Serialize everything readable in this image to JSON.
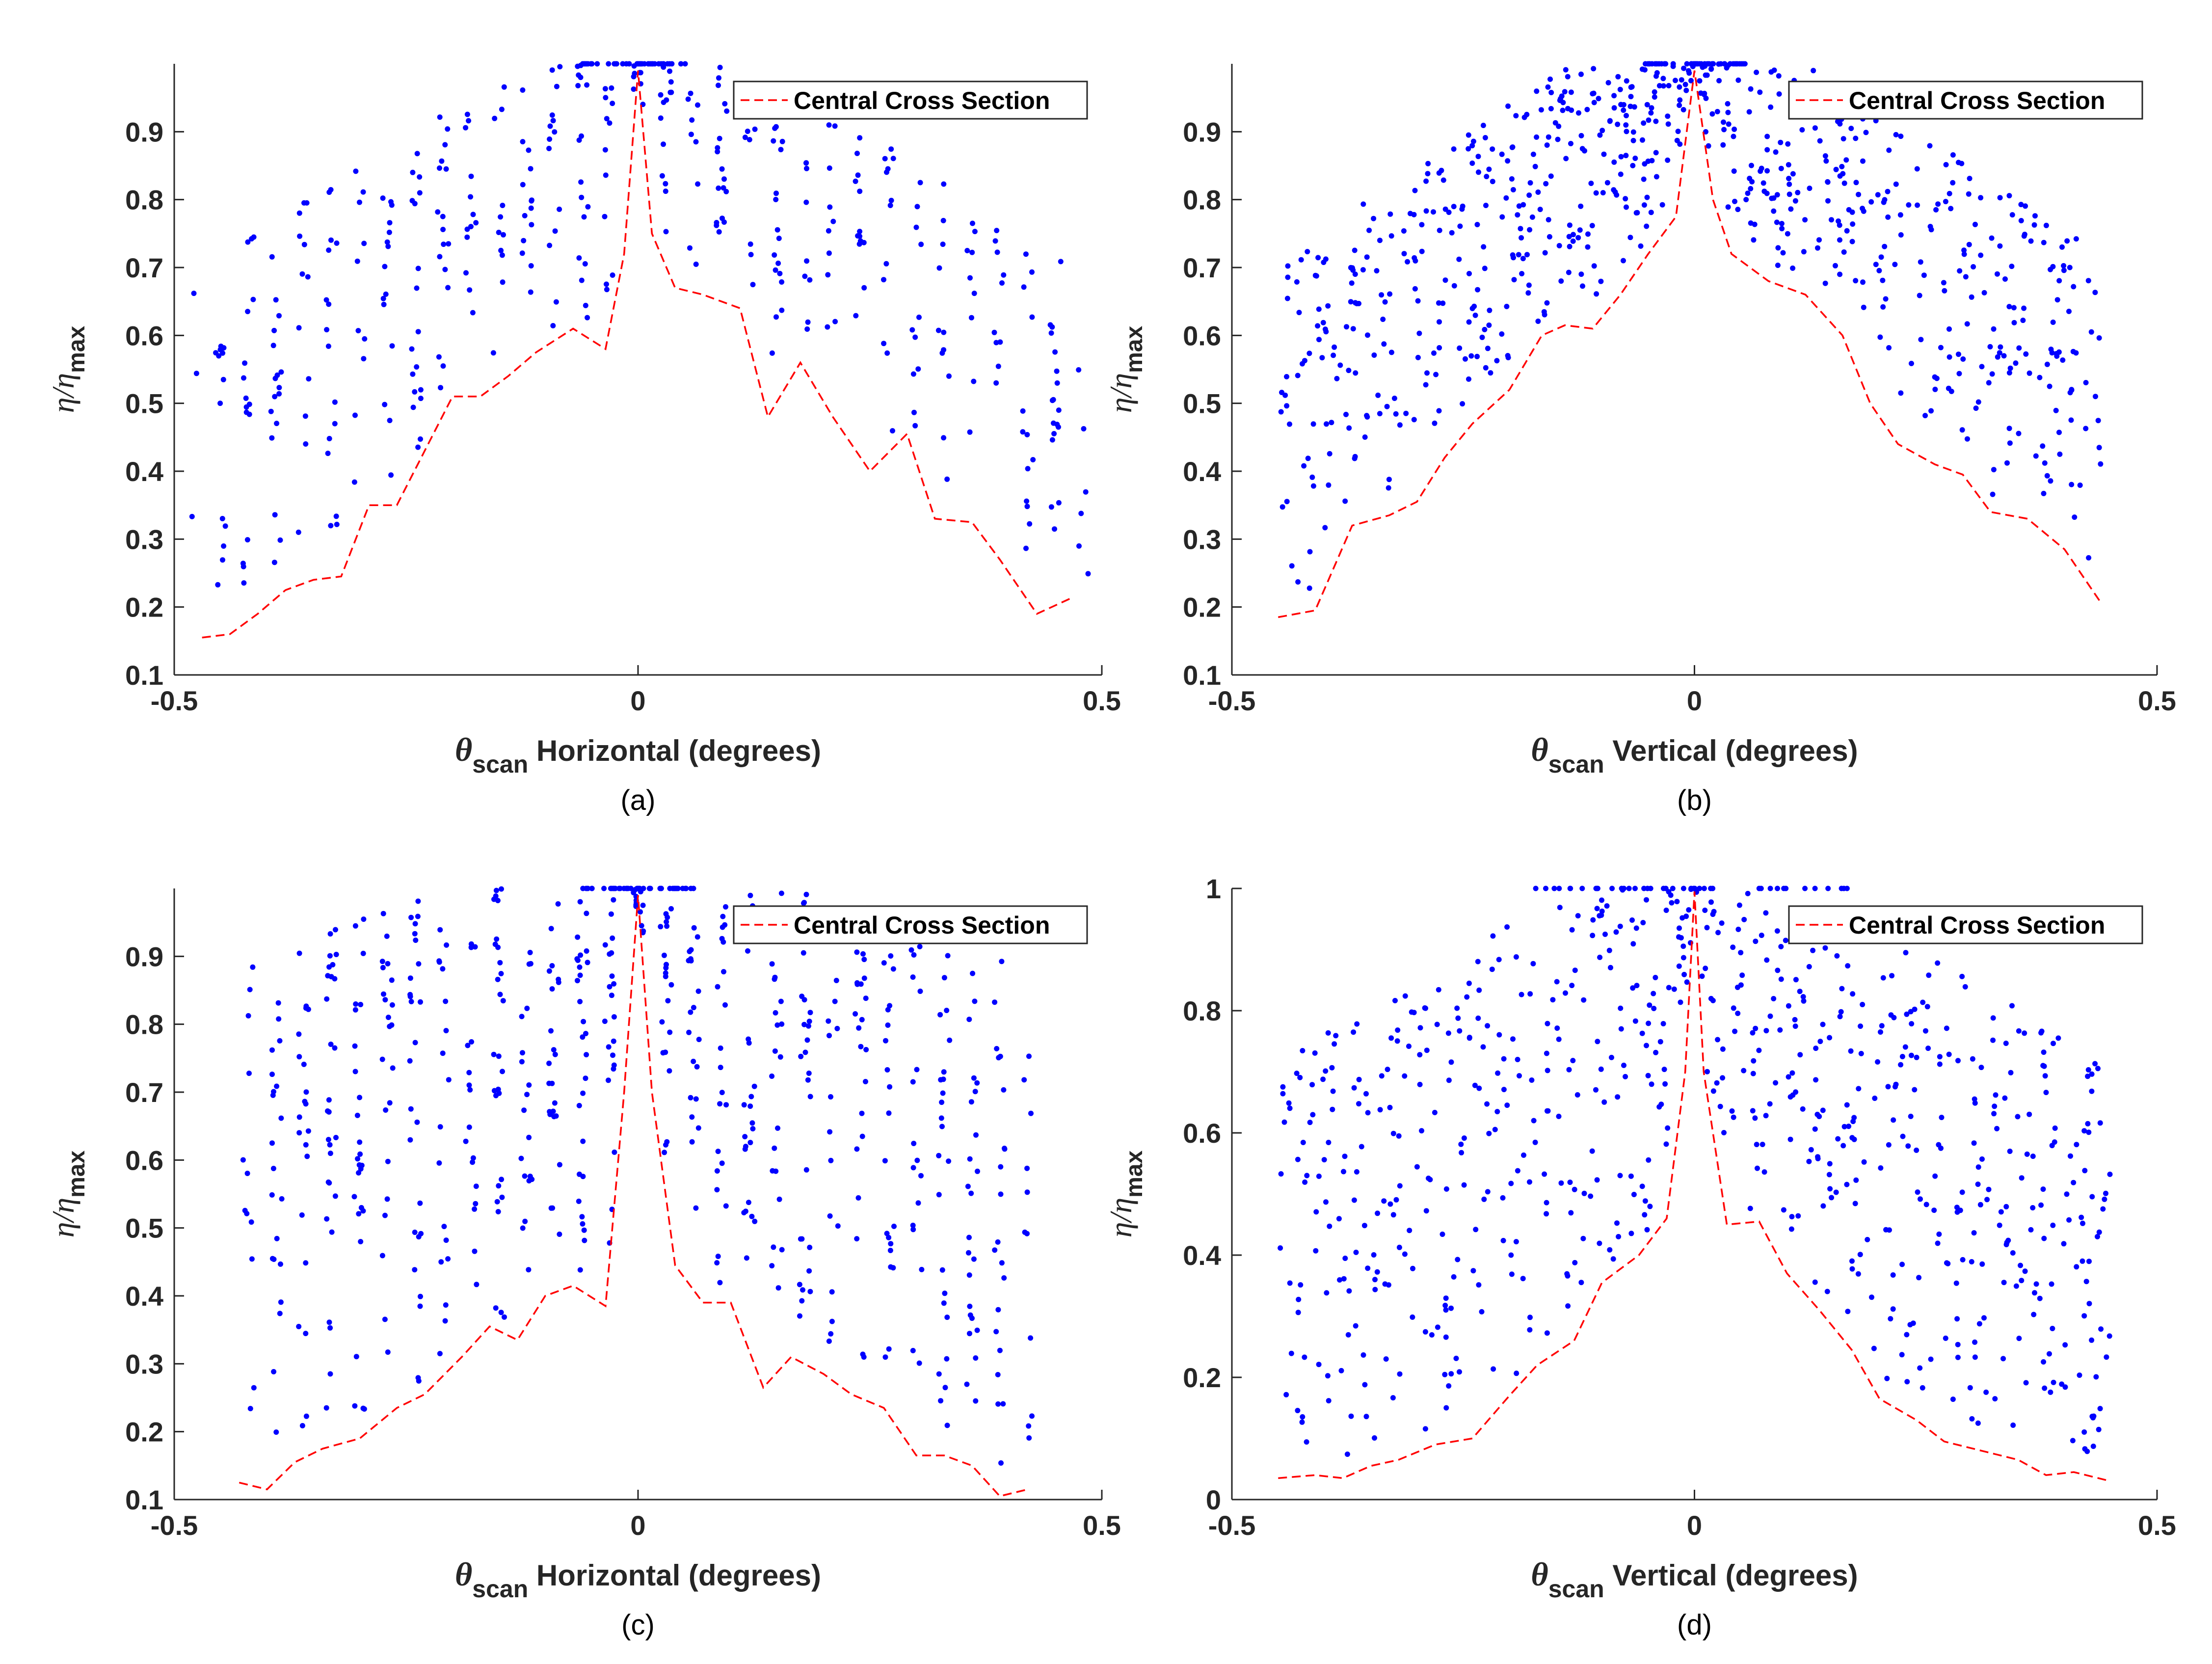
{
  "figure": {
    "legend_label": "Central Cross Section",
    "colors": {
      "points": "#0000ff",
      "line": "#ff0000",
      "axis": "#262626",
      "legend_border": "#262626"
    }
  },
  "chart_data": [
    {
      "id": "a",
      "type": "scatter",
      "caption": "(a)",
      "xlabel": {
        "symbol": "θ",
        "sub": "scan",
        "text": " Horizontal (degrees)"
      },
      "ylabel": {
        "symbol": "η/η",
        "sub": "max"
      },
      "xlim": [
        -0.5,
        0.5
      ],
      "ylim": [
        0.1,
        1.0
      ],
      "xticks": [
        -0.5,
        0,
        0.5
      ],
      "xtick_labels": [
        "-0.5",
        "0",
        "0.5"
      ],
      "yticks": [
        0.1,
        0.2,
        0.3,
        0.4,
        0.5,
        0.6,
        0.7,
        0.8,
        0.9
      ],
      "ytick_labels": [
        "0.1",
        "0.2",
        "0.3",
        "0.4",
        "0.5",
        "0.6",
        "0.7",
        "0.8",
        "0.9"
      ],
      "legend": {
        "label": "Central Cross Section",
        "position": "top-right"
      },
      "series": [
        {
          "name": "Central Cross Section",
          "style": "dashed-line",
          "x": [
            -0.47,
            -0.44,
            -0.41,
            -0.38,
            -0.35,
            -0.32,
            -0.29,
            -0.26,
            -0.23,
            -0.2,
            -0.17,
            -0.14,
            -0.11,
            -0.07,
            -0.035,
            -0.015,
            0,
            0.015,
            0.04,
            0.07,
            0.11,
            0.14,
            0.175,
            0.21,
            0.25,
            0.29,
            0.32,
            0.36,
            0.39,
            0.43,
            0.47
          ],
          "y": [
            0.155,
            0.16,
            0.19,
            0.225,
            0.24,
            0.245,
            0.35,
            0.35,
            0.43,
            0.51,
            0.51,
            0.54,
            0.575,
            0.61,
            0.58,
            0.72,
            0.99,
            0.75,
            0.67,
            0.66,
            0.64,
            0.48,
            0.56,
            0.48,
            0.4,
            0.455,
            0.33,
            0.325,
            0.27,
            0.19,
            0.215
          ]
        }
      ],
      "scatter_profile": {
        "n": 420,
        "envelope_peak_x": 0.0,
        "lower_bound": "dashed line",
        "upper_bound": 1.0,
        "clusters": "vertical columns every ~0.03 deg"
      }
    },
    {
      "id": "b",
      "type": "scatter",
      "caption": "(b)",
      "xlabel": {
        "symbol": "θ",
        "sub": "scan",
        "text": " Vertical (degrees)"
      },
      "ylabel": {
        "symbol": "η/η",
        "sub": "max"
      },
      "xlim": [
        -0.5,
        0.5
      ],
      "ylim": [
        0.1,
        1.0
      ],
      "xticks": [
        -0.5,
        0,
        0.5
      ],
      "xtick_labels": [
        "-0.5",
        "0",
        "0.5"
      ],
      "yticks": [
        0.1,
        0.2,
        0.3,
        0.4,
        0.5,
        0.6,
        0.7,
        0.8,
        0.9
      ],
      "ytick_labels": [
        "0.1",
        "0.2",
        "0.3",
        "0.4",
        "0.5",
        "0.6",
        "0.7",
        "0.8",
        "0.9"
      ],
      "legend": {
        "label": "Central Cross Section",
        "position": "top-right"
      },
      "series": [
        {
          "name": "Central Cross Section",
          "style": "dashed-line",
          "x": [
            -0.45,
            -0.41,
            -0.37,
            -0.33,
            -0.3,
            -0.27,
            -0.24,
            -0.2,
            -0.165,
            -0.14,
            -0.11,
            -0.08,
            -0.05,
            -0.02,
            0,
            0.02,
            0.04,
            0.08,
            0.12,
            0.16,
            0.19,
            0.22,
            0.26,
            0.29,
            0.32,
            0.36,
            0.4,
            0.44
          ],
          "y": [
            0.185,
            0.195,
            0.32,
            0.335,
            0.355,
            0.42,
            0.47,
            0.52,
            0.6,
            0.615,
            0.61,
            0.66,
            0.72,
            0.775,
            0.99,
            0.8,
            0.72,
            0.68,
            0.66,
            0.6,
            0.5,
            0.44,
            0.41,
            0.395,
            0.34,
            0.33,
            0.285,
            0.205
          ]
        }
      ],
      "scatter_profile": {
        "n": 700,
        "envelope_peak_x": 0.0,
        "lower_bound": "dashed line",
        "upper_bound": 1.0,
        "clusters": "dense diagonal bands"
      }
    },
    {
      "id": "c",
      "type": "scatter",
      "caption": "(c)",
      "xlabel": {
        "symbol": "θ",
        "sub": "scan",
        "text": " Horizontal (degrees)"
      },
      "ylabel": {
        "symbol": "η/η",
        "sub": "max"
      },
      "xlim": [
        -0.5,
        0.5
      ],
      "ylim": [
        0.1,
        1.0
      ],
      "xticks": [
        -0.5,
        0,
        0.5
      ],
      "xtick_labels": [
        "-0.5",
        "0",
        "0.5"
      ],
      "yticks": [
        0.1,
        0.2,
        0.3,
        0.4,
        0.5,
        0.6,
        0.7,
        0.8,
        0.9
      ],
      "ytick_labels": [
        "0.1",
        "0.2",
        "0.3",
        "0.4",
        "0.5",
        "0.6",
        "0.7",
        "0.8",
        "0.9"
      ],
      "legend": {
        "label": "Central Cross Section",
        "position": "top-right"
      },
      "series": [
        {
          "name": "Central Cross Section",
          "style": "dashed-line",
          "x": [
            -0.43,
            -0.4,
            -0.37,
            -0.34,
            -0.3,
            -0.26,
            -0.23,
            -0.19,
            -0.16,
            -0.13,
            -0.1,
            -0.07,
            -0.035,
            -0.015,
            0,
            0.015,
            0.04,
            0.07,
            0.1,
            0.135,
            0.165,
            0.2,
            0.23,
            0.265,
            0.3,
            0.33,
            0.36,
            0.39,
            0.42
          ],
          "y": [
            0.125,
            0.115,
            0.155,
            0.175,
            0.19,
            0.235,
            0.255,
            0.31,
            0.355,
            0.335,
            0.4,
            0.415,
            0.385,
            0.7,
            0.99,
            0.7,
            0.445,
            0.39,
            0.39,
            0.265,
            0.31,
            0.285,
            0.255,
            0.235,
            0.165,
            0.165,
            0.15,
            0.105,
            0.115
          ]
        }
      ],
      "scatter_profile": {
        "n": 620,
        "envelope_peak_x": 0.0,
        "lower_bound": "dashed line",
        "upper_bound": 1.0,
        "clusters": "scattered columns"
      }
    },
    {
      "id": "d",
      "type": "scatter",
      "caption": "(d)",
      "xlabel": {
        "symbol": "θ",
        "sub": "scan",
        "text": " Vertical (degrees)"
      },
      "ylabel": {
        "symbol": "η/η",
        "sub": "max"
      },
      "xlim": [
        -0.5,
        0.5
      ],
      "ylim": [
        0,
        1.0
      ],
      "xticks": [
        -0.5,
        0,
        0.5
      ],
      "xtick_labels": [
        "-0.5",
        "0",
        "0.5"
      ],
      "yticks": [
        0,
        0.2,
        0.4,
        0.6,
        0.8,
        1
      ],
      "ytick_labels": [
        "0",
        "0.2",
        "0.4",
        "0.6",
        "0.8",
        "1"
      ],
      "legend": {
        "label": "Central Cross Section",
        "position": "top-right"
      },
      "series": [
        {
          "name": "Central Cross Section",
          "style": "dashed-line",
          "x": [
            -0.45,
            -0.41,
            -0.38,
            -0.35,
            -0.32,
            -0.28,
            -0.24,
            -0.2,
            -0.17,
            -0.13,
            -0.1,
            -0.06,
            -0.03,
            -0.01,
            0,
            0.01,
            0.035,
            0.07,
            0.1,
            0.135,
            0.17,
            0.2,
            0.24,
            0.27,
            0.31,
            0.35,
            0.38,
            0.41,
            0.45
          ],
          "y": [
            0.035,
            0.04,
            0.035,
            0.055,
            0.065,
            0.09,
            0.1,
            0.17,
            0.22,
            0.26,
            0.355,
            0.4,
            0.46,
            0.7,
            0.995,
            0.7,
            0.45,
            0.455,
            0.37,
            0.31,
            0.245,
            0.165,
            0.13,
            0.095,
            0.08,
            0.065,
            0.04,
            0.045,
            0.03
          ]
        }
      ],
      "scatter_profile": {
        "n": 700,
        "envelope_peak_x": 0.0,
        "lower_bound": "dashed line",
        "upper_bound": 1.0,
        "clusters": "steep diagonal bands"
      }
    }
  ]
}
